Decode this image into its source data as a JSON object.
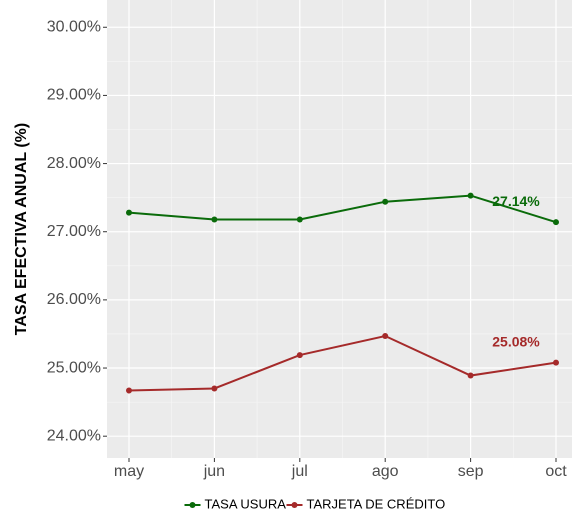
{
  "chart_data": {
    "type": "line",
    "y_label": "TASA EFECTIVA ANUAL (%)",
    "categories": [
      "may",
      "jun",
      "jul",
      "ago",
      "sep",
      "oct"
    ],
    "series": [
      {
        "name": "TASA USURA",
        "color": "#0a6b0a",
        "values": [
          27.28,
          27.18,
          27.18,
          27.44,
          27.53,
          27.14
        ],
        "value_labels": [
          null,
          null,
          null,
          null,
          null,
          "27.14%"
        ]
      },
      {
        "name": "TARJETA DE CRÉDITO",
        "color": "#a52a2a",
        "values": [
          24.67,
          24.7,
          25.19,
          25.47,
          24.89,
          25.08
        ],
        "value_labels": [
          null,
          null,
          null,
          null,
          null,
          "25.08%"
        ]
      }
    ],
    "ylim": [
      23.68,
      30.4
    ],
    "yticks": [
      {
        "value": 24,
        "label": "24.00%"
      },
      {
        "value": 25,
        "label": "25.00%"
      },
      {
        "value": 26,
        "label": "26.00%"
      },
      {
        "value": 27,
        "label": "27.00%"
      },
      {
        "value": 28,
        "label": "28.00%"
      },
      {
        "value": 29,
        "label": "29.00%"
      },
      {
        "value": 30,
        "label": "30.00%"
      }
    ],
    "grid": true,
    "legend": "bottom"
  }
}
